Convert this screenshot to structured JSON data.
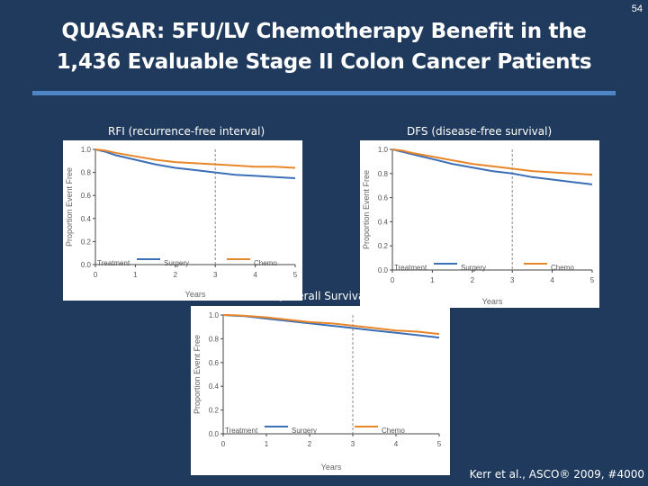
{
  "slide": {
    "number": "54",
    "title_line1": "QUASAR: 5FU/LV Chemotherapy Benefit in the",
    "title_line2": "1,436 Evaluable Stage II Colon Cancer Patients",
    "citation": "Kerr et al., ASCO® 2009, #4000"
  },
  "colors": {
    "background": "#1f3a5c",
    "accent_rule": "#4f86c6",
    "surgery_line": "#3b6fb6",
    "chemo_line": "#e8862a",
    "axis": "#444444"
  },
  "chart_data": [
    {
      "id": "rfi",
      "type": "line",
      "panel_label": "RFI (recurrence-free interval)",
      "xlabel": "Years",
      "ylabel": "Proportion Event Free",
      "x_ticks": [
        "0",
        "1",
        "2",
        "3",
        "4",
        "5"
      ],
      "y_ticks": [
        "0.0",
        "0.2",
        "0.4",
        "0.6",
        "0.8",
        "1.0"
      ],
      "xlim": [
        0,
        5
      ],
      "ylim": [
        0,
        1
      ],
      "legend_title": "Treatment",
      "legend_position": "bottom",
      "reference_x": 3,
      "series": [
        {
          "name": "Surgery",
          "color": "#3b6fb6",
          "x": [
            0,
            0.25,
            0.5,
            1,
            1.5,
            2,
            2.5,
            3,
            3.5,
            4,
            4.5,
            5
          ],
          "y": [
            1.0,
            0.98,
            0.95,
            0.91,
            0.87,
            0.84,
            0.82,
            0.8,
            0.78,
            0.77,
            0.76,
            0.75
          ]
        },
        {
          "name": "Chemo",
          "color": "#e8862a",
          "x": [
            0,
            0.25,
            0.5,
            1,
            1.5,
            2,
            2.5,
            3,
            3.5,
            4,
            4.5,
            5
          ],
          "y": [
            1.0,
            0.99,
            0.97,
            0.94,
            0.91,
            0.89,
            0.88,
            0.87,
            0.86,
            0.85,
            0.85,
            0.84
          ]
        }
      ]
    },
    {
      "id": "dfs",
      "type": "line",
      "panel_label": "DFS (disease-free survival)",
      "xlabel": "Years",
      "ylabel": "Proportion Event Free",
      "x_ticks": [
        "0",
        "1",
        "2",
        "3",
        "4",
        "5"
      ],
      "y_ticks": [
        "0.0",
        "0.2",
        "0.4",
        "0.6",
        "0.8",
        "1.0"
      ],
      "xlim": [
        0,
        5
      ],
      "ylim": [
        0,
        1
      ],
      "legend_title": "Treatment",
      "legend_position": "bottom",
      "reference_x": 3,
      "series": [
        {
          "name": "Surgery",
          "color": "#3b6fb6",
          "x": [
            0,
            0.25,
            0.5,
            1,
            1.5,
            2,
            2.5,
            3,
            3.5,
            4,
            4.5,
            5
          ],
          "y": [
            1.0,
            0.98,
            0.96,
            0.92,
            0.88,
            0.85,
            0.82,
            0.8,
            0.77,
            0.75,
            0.73,
            0.71
          ]
        },
        {
          "name": "Chemo",
          "color": "#e8862a",
          "x": [
            0,
            0.25,
            0.5,
            1,
            1.5,
            2,
            2.5,
            3,
            3.5,
            4,
            4.5,
            5
          ],
          "y": [
            1.0,
            0.99,
            0.97,
            0.94,
            0.91,
            0.88,
            0.86,
            0.84,
            0.82,
            0.81,
            0.8,
            0.79
          ]
        }
      ]
    },
    {
      "id": "os",
      "type": "line",
      "panel_label": "OS (Overall Survival)",
      "xlabel": "Years",
      "ylabel": "Proportion Event Free",
      "x_ticks": [
        "0",
        "1",
        "2",
        "3",
        "4",
        "5"
      ],
      "y_ticks": [
        "0.0",
        "0.2",
        "0.4",
        "0.6",
        "0.8",
        "1.0"
      ],
      "xlim": [
        0,
        5
      ],
      "ylim": [
        0,
        1
      ],
      "legend_title": "Treatment",
      "legend_position": "bottom",
      "reference_x": 3,
      "series": [
        {
          "name": "Surgery",
          "color": "#3b6fb6",
          "x": [
            0,
            0.25,
            0.5,
            1,
            1.5,
            2,
            2.5,
            3,
            3.5,
            4,
            4.5,
            5
          ],
          "y": [
            1.0,
            0.995,
            0.99,
            0.97,
            0.95,
            0.93,
            0.91,
            0.89,
            0.87,
            0.85,
            0.83,
            0.81
          ]
        },
        {
          "name": "Chemo",
          "color": "#e8862a",
          "x": [
            0,
            0.25,
            0.5,
            1,
            1.5,
            2,
            2.5,
            3,
            3.5,
            4,
            4.5,
            5
          ],
          "y": [
            1.0,
            0.998,
            0.993,
            0.98,
            0.96,
            0.94,
            0.93,
            0.91,
            0.89,
            0.87,
            0.86,
            0.84
          ]
        }
      ]
    }
  ]
}
